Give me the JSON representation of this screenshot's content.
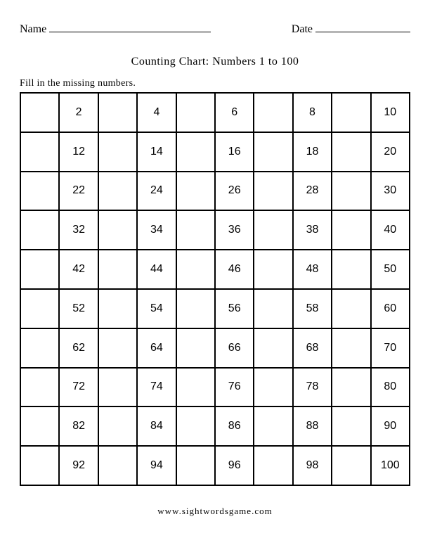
{
  "header": {
    "name_label": "Name",
    "date_label": "Date"
  },
  "title": "Counting Chart: Numbers 1 to 100",
  "instructions": "Fill in the missing numbers.",
  "chart": {
    "type": "table",
    "rows": 10,
    "cols": 10,
    "cells": [
      [
        "",
        "2",
        "",
        "4",
        "",
        "6",
        "",
        "8",
        "",
        "10"
      ],
      [
        "",
        "12",
        "",
        "14",
        "",
        "16",
        "",
        "18",
        "",
        "20"
      ],
      [
        "",
        "22",
        "",
        "24",
        "",
        "26",
        "",
        "28",
        "",
        "30"
      ],
      [
        "",
        "32",
        "",
        "34",
        "",
        "36",
        "",
        "38",
        "",
        "40"
      ],
      [
        "",
        "42",
        "",
        "44",
        "",
        "46",
        "",
        "48",
        "",
        "50"
      ],
      [
        "",
        "52",
        "",
        "54",
        "",
        "56",
        "",
        "58",
        "",
        "60"
      ],
      [
        "",
        "62",
        "",
        "64",
        "",
        "66",
        "",
        "68",
        "",
        "70"
      ],
      [
        "",
        "72",
        "",
        "74",
        "",
        "76",
        "",
        "78",
        "",
        "80"
      ],
      [
        "",
        "82",
        "",
        "84",
        "",
        "86",
        "",
        "88",
        "",
        "90"
      ],
      [
        "",
        "92",
        "",
        "94",
        "",
        "96",
        "",
        "98",
        "",
        "100"
      ]
    ],
    "border_color": "#000000",
    "cell_font_family": "Arial",
    "cell_font_size": 16,
    "background_color": "#ffffff"
  },
  "footer": "www.sightwordsgame.com"
}
